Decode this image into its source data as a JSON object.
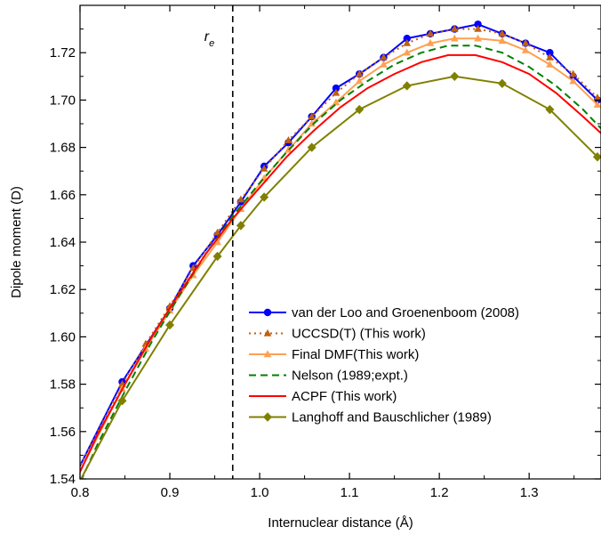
{
  "chart_data": {
    "type": "line",
    "xlabel": "Internuclear distance (Å)",
    "ylabel": "Dipole moment (D)",
    "xlim": [
      0.8,
      1.38
    ],
    "ylim": [
      1.54,
      1.74
    ],
    "xticks": [
      "0.8",
      "0.9",
      "1.0",
      "1.1",
      "1.2",
      "1.3"
    ],
    "xtick_values": [
      0.8,
      0.9,
      1.0,
      1.1,
      1.2,
      1.3
    ],
    "yticks": [
      "1.54",
      "1.56",
      "1.58",
      "1.60",
      "1.62",
      "1.64",
      "1.66",
      "1.68",
      "1.70",
      "1.72"
    ],
    "ytick_values": [
      1.54,
      1.56,
      1.58,
      1.6,
      1.62,
      1.64,
      1.66,
      1.68,
      1.7,
      1.72
    ],
    "grid": false,
    "legend_position": "bottom-right",
    "annotation": {
      "label": "r",
      "subscript": "e",
      "x": 0.97
    },
    "series": [
      {
        "name": "van der Loo and Groenenboom (2008)",
        "color": "#0000ff",
        "dash": "",
        "marker": "circle",
        "x": [
          0.79,
          0.847,
          0.9,
          0.926,
          0.953,
          0.979,
          1.005,
          1.032,
          1.058,
          1.085,
          1.111,
          1.138,
          1.164,
          1.19,
          1.217,
          1.243,
          1.27,
          1.296,
          1.323,
          1.349,
          1.376
        ],
        "y": [
          1.538,
          1.581,
          1.612,
          1.63,
          1.643,
          1.657,
          1.672,
          1.682,
          1.693,
          1.705,
          1.711,
          1.718,
          1.726,
          1.728,
          1.73,
          1.732,
          1.728,
          1.724,
          1.72,
          1.71,
          1.7
        ]
      },
      {
        "name": "UCCSD(T) (This work)",
        "color": "#c06010",
        "dash": "2,4",
        "marker": "triangle",
        "x": [
          0.79,
          0.847,
          0.873,
          0.9,
          0.926,
          0.953,
          0.979,
          1.005,
          1.032,
          1.058,
          1.085,
          1.111,
          1.138,
          1.164,
          1.19,
          1.217,
          1.243,
          1.27,
          1.296,
          1.323,
          1.349,
          1.376
        ],
        "y": [
          1.538,
          1.58,
          1.597,
          1.613,
          1.629,
          1.644,
          1.658,
          1.671,
          1.683,
          1.693,
          1.703,
          1.711,
          1.718,
          1.724,
          1.728,
          1.73,
          1.73,
          1.728,
          1.724,
          1.718,
          1.711,
          1.701
        ]
      },
      {
        "name": "Final DMF(This work)",
        "color": "#ffa050",
        "dash": "",
        "marker": "triangle",
        "x": [
          0.79,
          0.847,
          0.873,
          0.9,
          0.926,
          0.953,
          0.979,
          1.005,
          1.032,
          1.058,
          1.085,
          1.111,
          1.138,
          1.164,
          1.19,
          1.217,
          1.243,
          1.27,
          1.296,
          1.323,
          1.349,
          1.376
        ],
        "y": [
          1.536,
          1.578,
          1.595,
          1.611,
          1.626,
          1.64,
          1.654,
          1.667,
          1.679,
          1.69,
          1.699,
          1.708,
          1.715,
          1.72,
          1.724,
          1.726,
          1.726,
          1.725,
          1.721,
          1.715,
          1.708,
          1.698
        ]
      },
      {
        "name": "Nelson (1989;expt.)",
        "color": "#008000",
        "dash": "8,5",
        "marker": "none",
        "x": [
          0.79,
          0.82,
          0.85,
          0.88,
          0.91,
          0.94,
          0.97,
          1.0,
          1.03,
          1.06,
          1.09,
          1.12,
          1.15,
          1.18,
          1.21,
          1.24,
          1.27,
          1.3,
          1.33,
          1.36,
          1.38
        ],
        "y": [
          1.53,
          1.555,
          1.577,
          1.598,
          1.617,
          1.635,
          1.651,
          1.665,
          1.678,
          1.69,
          1.7,
          1.708,
          1.715,
          1.72,
          1.723,
          1.723,
          1.72,
          1.714,
          1.706,
          1.696,
          1.688
        ]
      },
      {
        "name": "ACPF (This work)",
        "color": "#ff0000",
        "dash": "",
        "marker": "none",
        "x": [
          0.79,
          0.82,
          0.85,
          0.88,
          0.91,
          0.94,
          0.97,
          1.0,
          1.03,
          1.06,
          1.09,
          1.12,
          1.15,
          1.18,
          1.21,
          1.24,
          1.27,
          1.3,
          1.33,
          1.36,
          1.38
        ],
        "y": [
          1.535,
          1.559,
          1.58,
          1.6,
          1.618,
          1.635,
          1.65,
          1.663,
          1.676,
          1.687,
          1.697,
          1.705,
          1.711,
          1.716,
          1.719,
          1.719,
          1.716,
          1.711,
          1.703,
          1.693,
          1.686
        ]
      },
      {
        "name": "Langhoff and Bauschlicher (1989)",
        "color": "#808000",
        "dash": "",
        "marker": "diamond",
        "x": [
          0.79,
          0.847,
          0.9,
          0.953,
          0.979,
          1.005,
          1.058,
          1.111,
          1.164,
          1.217,
          1.27,
          1.323,
          1.376
        ],
        "y": [
          1.532,
          1.573,
          1.605,
          1.634,
          1.647,
          1.659,
          1.68,
          1.696,
          1.706,
          1.71,
          1.707,
          1.696,
          1.676
        ]
      }
    ]
  }
}
